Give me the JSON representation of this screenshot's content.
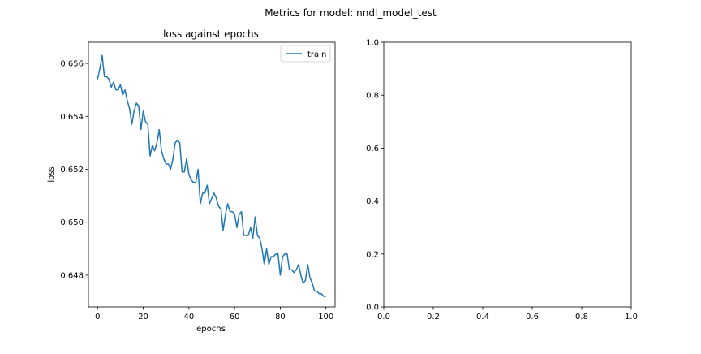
{
  "figure": {
    "suptitle": "Metrics for model: nndl_model_test"
  },
  "chart_data": [
    {
      "type": "line",
      "title": "loss against epochs",
      "xlabel": "epochs",
      "ylabel": "loss",
      "xlim": [
        -4,
        104
      ],
      "ylim": [
        0.6468,
        0.6568
      ],
      "xticks": [
        0,
        20,
        40,
        60,
        80,
        100
      ],
      "yticks": [
        0.648,
        0.65,
        0.652,
        0.654,
        0.656
      ],
      "ytick_labels": [
        "0.648",
        "0.650",
        "0.652",
        "0.654",
        "0.656"
      ],
      "grid": false,
      "legend": "top-right",
      "series": [
        {
          "name": "train",
          "color": "#1f77b4",
          "x": [
            0,
            1,
            2,
            3,
            4,
            5,
            6,
            7,
            8,
            9,
            10,
            11,
            12,
            13,
            14,
            15,
            16,
            17,
            18,
            19,
            20,
            21,
            22,
            23,
            24,
            25,
            26,
            27,
            28,
            29,
            30,
            31,
            32,
            33,
            34,
            35,
            36,
            37,
            38,
            39,
            40,
            41,
            42,
            43,
            44,
            45,
            46,
            47,
            48,
            49,
            50,
            51,
            52,
            53,
            54,
            55,
            56,
            57,
            58,
            59,
            60,
            61,
            62,
            63,
            64,
            65,
            66,
            67,
            68,
            69,
            70,
            71,
            72,
            73,
            74,
            75,
            76,
            77,
            78,
            79,
            80,
            81,
            82,
            83,
            84,
            85,
            86,
            87,
            88,
            89,
            90,
            91,
            92,
            93,
            94,
            95,
            96,
            97,
            98,
            99,
            100
          ],
          "values": [
            0.6554,
            0.6558,
            0.6563,
            0.6555,
            0.6555,
            0.6554,
            0.6551,
            0.6553,
            0.655,
            0.655,
            0.6552,
            0.6548,
            0.655,
            0.6546,
            0.6543,
            0.6537,
            0.6542,
            0.6545,
            0.6544,
            0.6535,
            0.6542,
            0.6538,
            0.6537,
            0.6525,
            0.6529,
            0.6527,
            0.653,
            0.6535,
            0.6527,
            0.6524,
            0.6522,
            0.6522,
            0.652,
            0.6524,
            0.653,
            0.6531,
            0.653,
            0.6519,
            0.6519,
            0.6524,
            0.6518,
            0.6516,
            0.6515,
            0.6515,
            0.652,
            0.6507,
            0.6511,
            0.6511,
            0.6514,
            0.6507,
            0.6509,
            0.6511,
            0.6509,
            0.6506,
            0.6505,
            0.6497,
            0.6503,
            0.6507,
            0.6504,
            0.6504,
            0.6503,
            0.6498,
            0.6503,
            0.6504,
            0.6495,
            0.6495,
            0.6495,
            0.6498,
            0.6494,
            0.6502,
            0.6495,
            0.6494,
            0.649,
            0.6484,
            0.649,
            0.6484,
            0.6487,
            0.6487,
            0.6488,
            0.6488,
            0.648,
            0.6487,
            0.6488,
            0.6488,
            0.6482,
            0.6482,
            0.6481,
            0.6482,
            0.6484,
            0.648,
            0.6477,
            0.6478,
            0.6484,
            0.6479,
            0.6477,
            0.6474,
            0.6474,
            0.6473,
            0.6473,
            0.6472,
            0.6472
          ]
        }
      ]
    },
    {
      "type": "line",
      "title": "",
      "xlabel": "",
      "ylabel": "",
      "xlim": [
        0,
        1
      ],
      "ylim": [
        0,
        1
      ],
      "xticks": [
        0,
        0.2,
        0.4,
        0.6,
        0.8,
        1.0
      ],
      "yticks": [
        0,
        0.2,
        0.4,
        0.6,
        0.8,
        1.0
      ],
      "xtick_labels": [
        "0.0",
        "0.2",
        "0.4",
        "0.6",
        "0.8",
        "1.0"
      ],
      "ytick_labels": [
        "0.0",
        "0.2",
        "0.4",
        "0.6",
        "0.8",
        "1.0"
      ],
      "grid": false,
      "series": []
    }
  ]
}
